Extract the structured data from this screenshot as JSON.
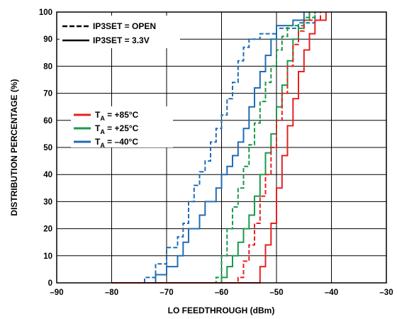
{
  "chart_data": {
    "type": "line",
    "xlabel": "LO FEEDTHROUGH (dBm)",
    "ylabel": "DISTRIBUTION PERCENTAGE (%)",
    "xlim": [
      -90,
      -30
    ],
    "ylim": [
      0,
      100
    ],
    "xticks": [
      "–90",
      "–80",
      "–70",
      "–60",
      "–50",
      "–40",
      "–30"
    ],
    "yticks": [
      "0",
      "10",
      "20",
      "30",
      "40",
      "50",
      "60",
      "70",
      "80",
      "90",
      "100"
    ],
    "grid": true,
    "legend_style": {
      "position": "top-left",
      "entries": [
        {
          "dash": true,
          "label": "IP3SET = OPEN"
        },
        {
          "dash": false,
          "label": "IP3SET = 3.3V"
        }
      ]
    },
    "legend_temp": {
      "position": "center-left",
      "entries": [
        {
          "main": "T",
          "sub": "A",
          "rest": " = +85°C",
          "color": "#e8201f"
        },
        {
          "main": "T",
          "sub": "A",
          "rest": " = +25°C",
          "color": "#1a9a4b"
        },
        {
          "main": "T",
          "sub": "A",
          "rest": " = –40°C",
          "color": "#1f6cb5"
        }
      ]
    },
    "series": [
      {
        "color": "#1f6cb5",
        "dash": false,
        "points": [
          [
            -80,
            0
          ],
          [
            -72,
            0
          ],
          [
            -72,
            3
          ],
          [
            -70,
            3
          ],
          [
            -70,
            6
          ],
          [
            -68,
            6
          ],
          [
            -68,
            10
          ],
          [
            -67,
            10
          ],
          [
            -67,
            15
          ],
          [
            -66,
            15
          ],
          [
            -66,
            20
          ],
          [
            -64,
            20
          ],
          [
            -64,
            25
          ],
          [
            -63,
            25
          ],
          [
            -63,
            30
          ],
          [
            -61,
            30
          ],
          [
            -61,
            35
          ],
          [
            -60,
            35
          ],
          [
            -60,
            40
          ],
          [
            -59,
            40
          ],
          [
            -59,
            43
          ],
          [
            -58,
            43
          ],
          [
            -58,
            47
          ],
          [
            -57,
            47
          ],
          [
            -57,
            52
          ],
          [
            -56,
            52
          ],
          [
            -56,
            57
          ],
          [
            -55,
            57
          ],
          [
            -55,
            65
          ],
          [
            -54,
            65
          ],
          [
            -54,
            72
          ],
          [
            -53,
            72
          ],
          [
            -53,
            78
          ],
          [
            -52,
            78
          ],
          [
            -52,
            84
          ],
          [
            -51,
            84
          ],
          [
            -51,
            90
          ],
          [
            -50,
            90
          ],
          [
            -50,
            95
          ],
          [
            -47,
            95
          ],
          [
            -47,
            97
          ],
          [
            -45,
            97
          ],
          [
            -45,
            100
          ]
        ]
      },
      {
        "color": "#1f6cb5",
        "dash": true,
        "points": [
          [
            -74,
            0
          ],
          [
            -74,
            2
          ],
          [
            -72,
            2
          ],
          [
            -72,
            7
          ],
          [
            -70,
            7
          ],
          [
            -70,
            13
          ],
          [
            -68,
            13
          ],
          [
            -68,
            17
          ],
          [
            -67,
            17
          ],
          [
            -67,
            22
          ],
          [
            -66,
            22
          ],
          [
            -66,
            30
          ],
          [
            -65,
            30
          ],
          [
            -65,
            36
          ],
          [
            -64,
            36
          ],
          [
            -64,
            41
          ],
          [
            -63,
            41
          ],
          [
            -63,
            45
          ],
          [
            -62,
            45
          ],
          [
            -62,
            52
          ],
          [
            -61,
            52
          ],
          [
            -61,
            57
          ],
          [
            -60,
            57
          ],
          [
            -60,
            62
          ],
          [
            -59,
            62
          ],
          [
            -59,
            68
          ],
          [
            -58,
            68
          ],
          [
            -58,
            74
          ],
          [
            -57,
            74
          ],
          [
            -57,
            82
          ],
          [
            -56,
            82
          ],
          [
            -56,
            87
          ],
          [
            -55,
            87
          ],
          [
            -55,
            90
          ],
          [
            -53,
            90
          ],
          [
            -53,
            92
          ],
          [
            -50,
            92
          ],
          [
            -50,
            94
          ],
          [
            -46,
            94
          ],
          [
            -46,
            96
          ],
          [
            -43,
            96
          ],
          [
            -43,
            100
          ]
        ]
      },
      {
        "color": "#1a9a4b",
        "dash": false,
        "points": [
          [
            -80,
            0
          ],
          [
            -60,
            0
          ],
          [
            -60,
            2
          ],
          [
            -59,
            2
          ],
          [
            -59,
            6
          ],
          [
            -58,
            6
          ],
          [
            -58,
            10
          ],
          [
            -57,
            10
          ],
          [
            -57,
            15
          ],
          [
            -56,
            15
          ],
          [
            -56,
            20
          ],
          [
            -55,
            20
          ],
          [
            -55,
            25
          ],
          [
            -54,
            25
          ],
          [
            -54,
            32
          ],
          [
            -53,
            32
          ],
          [
            -53,
            40
          ],
          [
            -52,
            40
          ],
          [
            -52,
            48
          ],
          [
            -51,
            48
          ],
          [
            -51,
            55
          ],
          [
            -50,
            55
          ],
          [
            -50,
            65
          ],
          [
            -49,
            65
          ],
          [
            -49,
            73
          ],
          [
            -48,
            73
          ],
          [
            -48,
            82
          ],
          [
            -47,
            82
          ],
          [
            -47,
            90
          ],
          [
            -46,
            90
          ],
          [
            -46,
            94
          ],
          [
            -45,
            94
          ],
          [
            -45,
            97
          ],
          [
            -44,
            97
          ],
          [
            -44,
            100
          ]
        ]
      },
      {
        "color": "#1a9a4b",
        "dash": true,
        "points": [
          [
            -80,
            0
          ],
          [
            -61,
            0
          ],
          [
            -61,
            2
          ],
          [
            -60,
            2
          ],
          [
            -60,
            10
          ],
          [
            -59,
            10
          ],
          [
            -59,
            20
          ],
          [
            -58,
            20
          ],
          [
            -58,
            28
          ],
          [
            -57,
            28
          ],
          [
            -57,
            35
          ],
          [
            -56,
            35
          ],
          [
            -56,
            43
          ],
          [
            -55,
            43
          ],
          [
            -55,
            51
          ],
          [
            -54,
            51
          ],
          [
            -54,
            59
          ],
          [
            -53,
            59
          ],
          [
            -53,
            67
          ],
          [
            -52,
            67
          ],
          [
            -52,
            74
          ],
          [
            -51,
            74
          ],
          [
            -51,
            80
          ],
          [
            -50,
            80
          ],
          [
            -50,
            86
          ],
          [
            -49,
            86
          ],
          [
            -49,
            91
          ],
          [
            -48,
            91
          ],
          [
            -48,
            95
          ],
          [
            -45,
            95
          ],
          [
            -45,
            98
          ],
          [
            -43,
            98
          ],
          [
            -43,
            100
          ]
        ]
      },
      {
        "color": "#e8201f",
        "dash": false,
        "points": [
          [
            -80,
            0
          ],
          [
            -53,
            0
          ],
          [
            -53,
            6
          ],
          [
            -52,
            6
          ],
          [
            -52,
            14
          ],
          [
            -51,
            14
          ],
          [
            -51,
            22
          ],
          [
            -50,
            22
          ],
          [
            -50,
            35
          ],
          [
            -49,
            35
          ],
          [
            -49,
            47
          ],
          [
            -48,
            47
          ],
          [
            -48,
            58
          ],
          [
            -47,
            58
          ],
          [
            -47,
            68
          ],
          [
            -46,
            68
          ],
          [
            -46,
            78
          ],
          [
            -45,
            78
          ],
          [
            -45,
            86
          ],
          [
            -44,
            86
          ],
          [
            -44,
            92
          ],
          [
            -43,
            92
          ],
          [
            -43,
            97
          ],
          [
            -41,
            97
          ],
          [
            -41,
            100
          ]
        ]
      },
      {
        "color": "#e8201f",
        "dash": true,
        "points": [
          [
            -80,
            0
          ],
          [
            -57,
            0
          ],
          [
            -57,
            2
          ],
          [
            -56,
            2
          ],
          [
            -56,
            8
          ],
          [
            -55,
            8
          ],
          [
            -55,
            14
          ],
          [
            -54,
            14
          ],
          [
            -54,
            22
          ],
          [
            -53,
            22
          ],
          [
            -53,
            32
          ],
          [
            -52,
            32
          ],
          [
            -52,
            40
          ],
          [
            -51,
            40
          ],
          [
            -51,
            50
          ],
          [
            -50,
            50
          ],
          [
            -50,
            60
          ],
          [
            -49,
            60
          ],
          [
            -49,
            70
          ],
          [
            -48,
            70
          ],
          [
            -48,
            80
          ],
          [
            -47,
            80
          ],
          [
            -47,
            88
          ],
          [
            -46,
            88
          ],
          [
            -46,
            93
          ],
          [
            -45,
            93
          ],
          [
            -45,
            97
          ],
          [
            -42,
            97
          ],
          [
            -42,
            100
          ]
        ]
      }
    ]
  }
}
